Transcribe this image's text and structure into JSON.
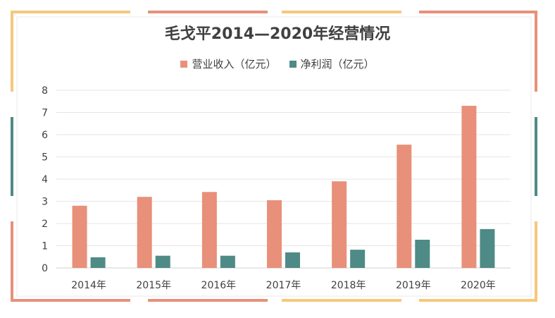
{
  "colors": {
    "revenue": "#e8907a",
    "profit": "#4e8a86",
    "frame_orange": "#f6c87a",
    "frame_salmon": "#e8907a",
    "frame_teal": "#4e8a86",
    "grid": "#e6e6e6",
    "text": "#404040"
  },
  "chart_data": {
    "type": "bar",
    "title": "毛戈平2014—2020年经营情况",
    "categories": [
      "2014年",
      "2015年",
      "2016年",
      "2017年",
      "2018年",
      "2019年",
      "2020年"
    ],
    "series": [
      {
        "name": "营业收入（亿元）",
        "values": [
          2.8,
          3.2,
          3.42,
          3.05,
          3.9,
          5.55,
          7.3
        ]
      },
      {
        "name": "净利润（亿元）",
        "values": [
          0.48,
          0.55,
          0.55,
          0.7,
          0.82,
          1.27,
          1.75
        ]
      }
    ],
    "ylim": [
      0,
      8
    ],
    "yticks": [
      "0",
      "1",
      "2",
      "3",
      "4",
      "5",
      "6",
      "7",
      "8"
    ],
    "grid": true,
    "legend_position": "top-center"
  }
}
